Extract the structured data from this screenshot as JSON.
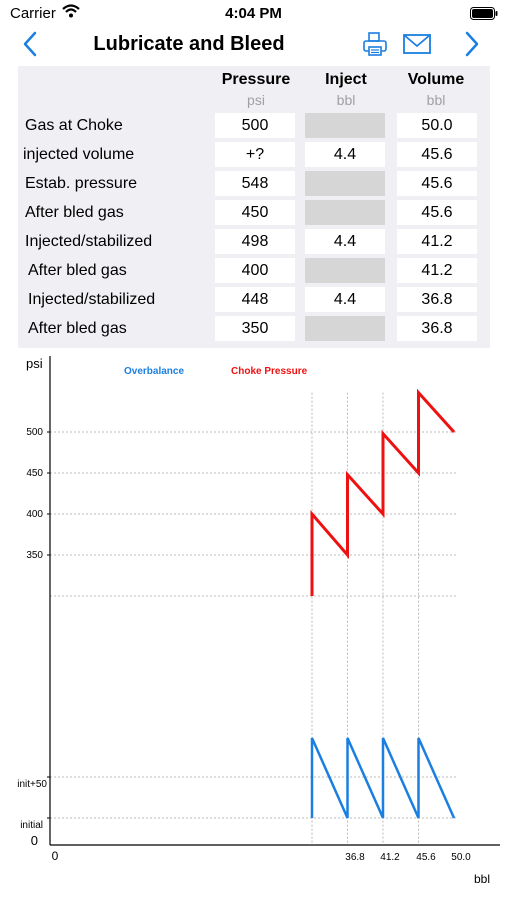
{
  "status_bar": {
    "carrier": "Carrier",
    "time": "4:04 PM"
  },
  "nav": {
    "title": "Lubricate and Bleed"
  },
  "table": {
    "headers": {
      "pressure": "Pressure",
      "inject": "Inject",
      "volume": "Volume"
    },
    "units": {
      "pressure": "psi",
      "inject": "bbl",
      "volume": "bbl"
    },
    "rows": [
      {
        "label": "Gas at Choke",
        "pressure": "500",
        "inject": "",
        "volume": "50.0"
      },
      {
        "label": "injected volume",
        "pressure": "+?",
        "inject": "4.4",
        "volume": "45.6"
      },
      {
        "label": "Estab. pressure",
        "pressure": "548",
        "inject": "",
        "volume": "45.6"
      },
      {
        "label": "After bled gas",
        "pressure": "450",
        "inject": "",
        "volume": "45.6"
      },
      {
        "label": "Injected/stabilized",
        "pressure": "498",
        "inject": "4.4",
        "volume": "41.2"
      },
      {
        "label": "After bled gas",
        "pressure": "400",
        "inject": "",
        "volume": "41.2"
      },
      {
        "label": "Injected/stabilized",
        "pressure": "448",
        "inject": "4.4",
        "volume": "36.8"
      },
      {
        "label": "After bled gas",
        "pressure": "350",
        "inject": "",
        "volume": "36.8"
      }
    ]
  },
  "chart_data": {
    "type": "line",
    "ylabel": "psi",
    "xlabel": "bbl",
    "y_ticks": [
      "500",
      "450",
      "400",
      "350",
      "init+50",
      "initial",
      "0"
    ],
    "x_ticks": [
      "0",
      "36.8",
      "41.2",
      "45.6",
      "50.0"
    ],
    "legend": [
      "Overbalance",
      "Choke Pressure"
    ],
    "legend_placement": "top",
    "colors": {
      "overbalance": "#1a7fe0",
      "choke_pressure": "#ee1111"
    },
    "series": [
      {
        "name": "Choke Pressure",
        "x": [
          36.8,
          36.8,
          41.2,
          41.2,
          45.6,
          45.6,
          50.0,
          50.0,
          54.4
        ],
        "y": [
          300,
          400,
          350,
          448,
          400,
          498,
          450,
          548,
          500
        ]
      },
      {
        "name": "Overbalance",
        "x": [
          36.8,
          36.8,
          41.2,
          41.2,
          45.6,
          45.6,
          50.0,
          50.0,
          54.4
        ],
        "y": [
          "initial",
          "init+50+",
          "initial",
          "init+50+",
          "initial",
          "init+50+",
          "initial",
          "init+50+",
          "initial"
        ]
      }
    ]
  }
}
